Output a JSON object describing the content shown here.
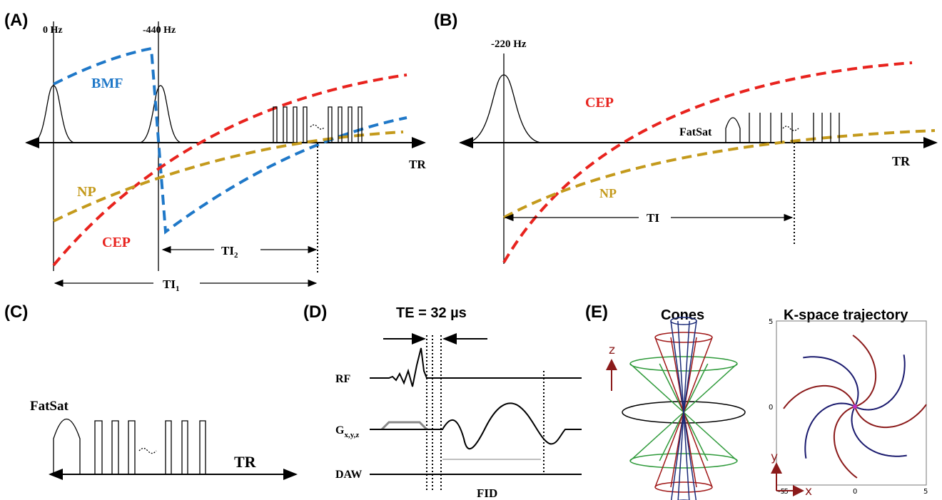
{
  "panel_a": {
    "label": "(A)",
    "freq_labels": [
      "0 Hz",
      "-440 Hz"
    ],
    "curve_labels": [
      "BMF",
      "NP",
      "CEP"
    ],
    "ti_labels": [
      {
        "text": "TI",
        "sub": "2"
      },
      {
        "text": "TI",
        "sub": "1"
      }
    ],
    "axis": "TR"
  },
  "panel_b": {
    "label": "(B)",
    "freq_label": "-220 Hz",
    "curve_labels": [
      "CEP",
      "NP"
    ],
    "pulse": "FatSat",
    "ti_label": "TI",
    "axis": "TR"
  },
  "panel_c": {
    "label": "(C)",
    "pulse": "FatSat",
    "axis": "TR"
  },
  "panel_d": {
    "label": "(D)",
    "te": "TE = 32 µs",
    "rows": [
      "RF",
      {
        "text": "G",
        "sub": "x,y,z"
      },
      "DAW"
    ],
    "signal": "FID"
  },
  "panel_e": {
    "label": "(E)",
    "titles": [
      "Cones",
      "K-space trajectory"
    ],
    "cone_axis": "z",
    "plot": {
      "x_label": "x",
      "y_label": "y",
      "xticks": [
        "-5",
        "0",
        "5"
      ],
      "yticks": [
        "5",
        "0",
        "-5"
      ]
    }
  }
}
